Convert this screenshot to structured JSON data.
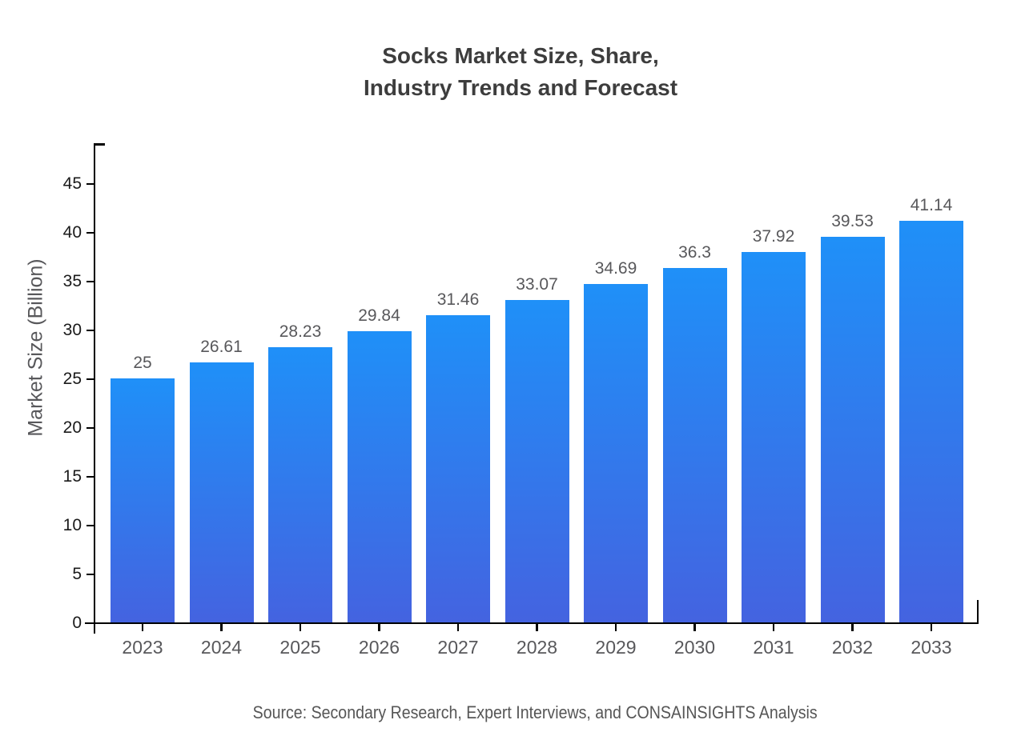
{
  "title": {
    "line1": "Socks Market Size, Share,",
    "line2": "Industry Trends and Forecast"
  },
  "source_note": "Source: Secondary Research, Expert Interviews, and CONSAINSIGHTS Analysis",
  "chart_data": {
    "type": "bar",
    "title": "Socks Market Size, Share, Industry Trends and Forecast",
    "categories": [
      "2023",
      "2024",
      "2025",
      "2026",
      "2027",
      "2028",
      "2029",
      "2030",
      "2031",
      "2032",
      "2033"
    ],
    "values": [
      25,
      26.61,
      28.23,
      29.84,
      31.46,
      33.07,
      34.69,
      36.3,
      37.92,
      39.53,
      41.14
    ],
    "xlabel": "",
    "ylabel": "Market Size (Billion)",
    "ylim": [
      0,
      49
    ],
    "y_ticks": [
      0,
      5,
      10,
      15,
      20,
      25,
      30,
      35,
      40,
      45
    ],
    "grid": false,
    "legend": "none",
    "value_labels_shown": true,
    "colors": {
      "bar_gradient_top": "#1f90f8",
      "bar_gradient_bottom": "#4463e0",
      "axis": "#000000",
      "title_text": "#3d3d3d",
      "tick_text": "#58585b",
      "y_tick_text": "#1a1a1a",
      "source_text": "#565656"
    }
  }
}
